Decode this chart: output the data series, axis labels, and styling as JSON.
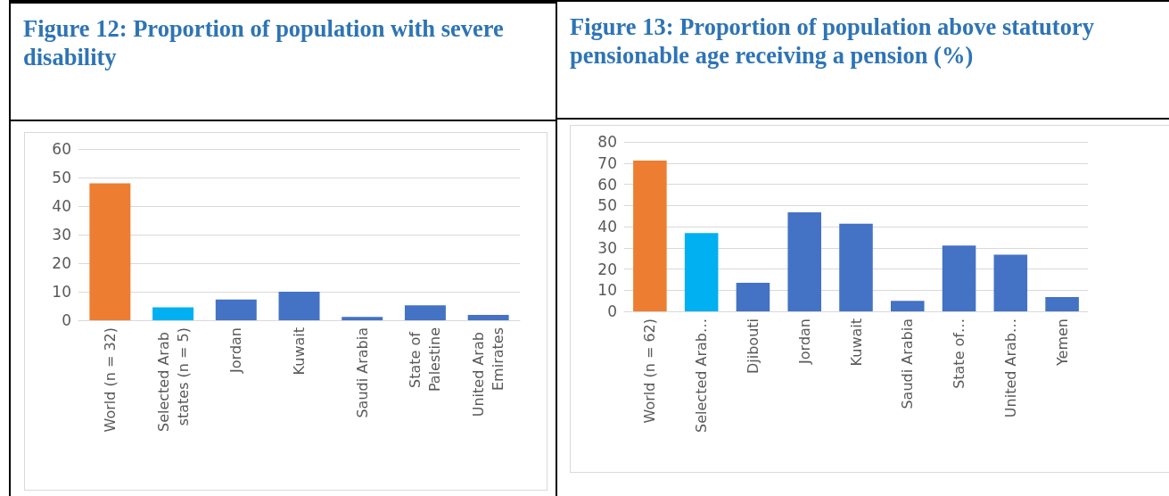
{
  "chart_data": [
    {
      "type": "bar",
      "title": "Figure 12: Proportion of population with severe disability",
      "categories": [
        "World (n = 32)",
        "Selected Arab states (n = 5)",
        "Jordan",
        "Kuwait",
        "Saudi Arabia",
        "State of Palestine",
        "United Arab Emirates"
      ],
      "values": [
        48,
        4.5,
        7.3,
        10,
        1.2,
        5.2,
        1.9
      ],
      "colors": [
        "#ed7d31",
        "#00b0f0",
        "#4472c4",
        "#4472c4",
        "#4472c4",
        "#4472c4",
        "#4472c4"
      ],
      "ylim": [
        0,
        60
      ],
      "yticks": [
        0,
        10,
        20,
        30,
        40,
        50,
        60
      ],
      "grid": "y"
    },
    {
      "type": "bar",
      "title": "Figure 13: Proportion of population above statutory pensionable age receiving a pension (%)",
      "categories": [
        "World (n = 62)",
        "Selected Arab…",
        "Djibouti",
        "Jordan",
        "Kuwait",
        "Saudi Arabia",
        "State of…",
        "United Arab…",
        "Yemen"
      ],
      "values": [
        71.2,
        36.9,
        13.5,
        46.7,
        41.4,
        4.9,
        31.1,
        26.7,
        6.7
      ],
      "colors": [
        "#ed7d31",
        "#00b0f0",
        "#4472c4",
        "#4472c4",
        "#4472c4",
        "#4472c4",
        "#4472c4",
        "#4472c4",
        "#4472c4"
      ],
      "ylim": [
        0,
        80
      ],
      "yticks": [
        0,
        10,
        20,
        30,
        40,
        50,
        60,
        70,
        80
      ],
      "grid": "y"
    }
  ]
}
